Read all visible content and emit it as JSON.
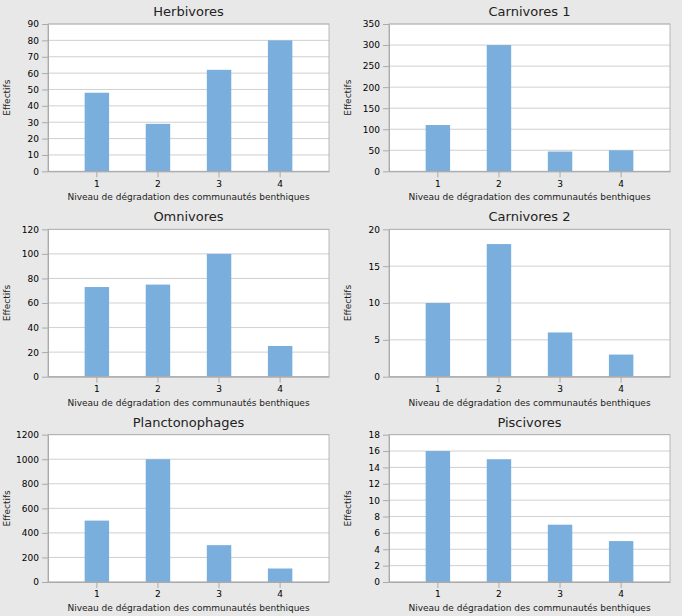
{
  "chart_data": [
    {
      "type": "bar",
      "title": "Herbivores",
      "categories": [
        "1",
        "2",
        "3",
        "4"
      ],
      "values": [
        48,
        29,
        62,
        80
      ],
      "color": "#7aaedc",
      "ylim": [
        0,
        90
      ],
      "yticks": [
        0,
        10,
        20,
        30,
        40,
        50,
        60,
        70,
        80,
        90
      ],
      "grid": true,
      "xlabel": "Niveau de dégradation des communautés benthiques",
      "ylabel": "Effectifs"
    },
    {
      "type": "bar",
      "title": "Carnivores 1",
      "categories": [
        "1",
        "2",
        "3",
        "4"
      ],
      "values": [
        110,
        300,
        47,
        50
      ],
      "color": "#7aaedc",
      "ylim": [
        0,
        350
      ],
      "yticks": [
        0,
        50,
        100,
        150,
        200,
        250,
        300,
        350
      ],
      "grid": true,
      "xlabel": "Niveau de dégradation des communautés benthiques",
      "ylabel": "Effectifs"
    },
    {
      "type": "bar",
      "title": "Omnivores",
      "categories": [
        "1",
        "2",
        "3",
        "4"
      ],
      "values": [
        73,
        75,
        100,
        25
      ],
      "color": "#7aaedc",
      "ylim": [
        0,
        120
      ],
      "yticks": [
        0,
        20,
        40,
        60,
        80,
        100,
        120
      ],
      "grid": true,
      "xlabel": "Niveau de dégradation des communautés benthiques",
      "ylabel": "Effectifs"
    },
    {
      "type": "bar",
      "title": "Carnivores 2",
      "categories": [
        "1",
        "2",
        "3",
        "4"
      ],
      "values": [
        10,
        18,
        6,
        3
      ],
      "color": "#7aaedc",
      "ylim": [
        0,
        20
      ],
      "yticks": [
        0,
        5,
        10,
        15,
        20
      ],
      "grid": true,
      "xlabel": "Niveau de dégradation des communautés benthiques",
      "ylabel": "Effectifs"
    },
    {
      "type": "bar",
      "title": "Planctonophages",
      "categories": [
        "1",
        "2",
        "3",
        "4"
      ],
      "values": [
        500,
        1000,
        300,
        110
      ],
      "color": "#7aaedc",
      "ylim": [
        0,
        1200
      ],
      "yticks": [
        0,
        200,
        400,
        600,
        800,
        1000,
        1200
      ],
      "grid": true,
      "xlabel": "Niveau de dégradation des communautés benthiques",
      "ylabel": "Effectifs"
    },
    {
      "type": "bar",
      "title": "Piscivores",
      "categories": [
        "1",
        "2",
        "3",
        "4"
      ],
      "values": [
        16,
        15,
        7,
        5
      ],
      "color": "#7aaedc",
      "ylim": [
        0,
        18
      ],
      "yticks": [
        0,
        2,
        4,
        6,
        8,
        10,
        12,
        14,
        16,
        18
      ],
      "grid": true,
      "xlabel": "Niveau de dégradation des communautés benthiques",
      "ylabel": "Effectifs"
    }
  ]
}
